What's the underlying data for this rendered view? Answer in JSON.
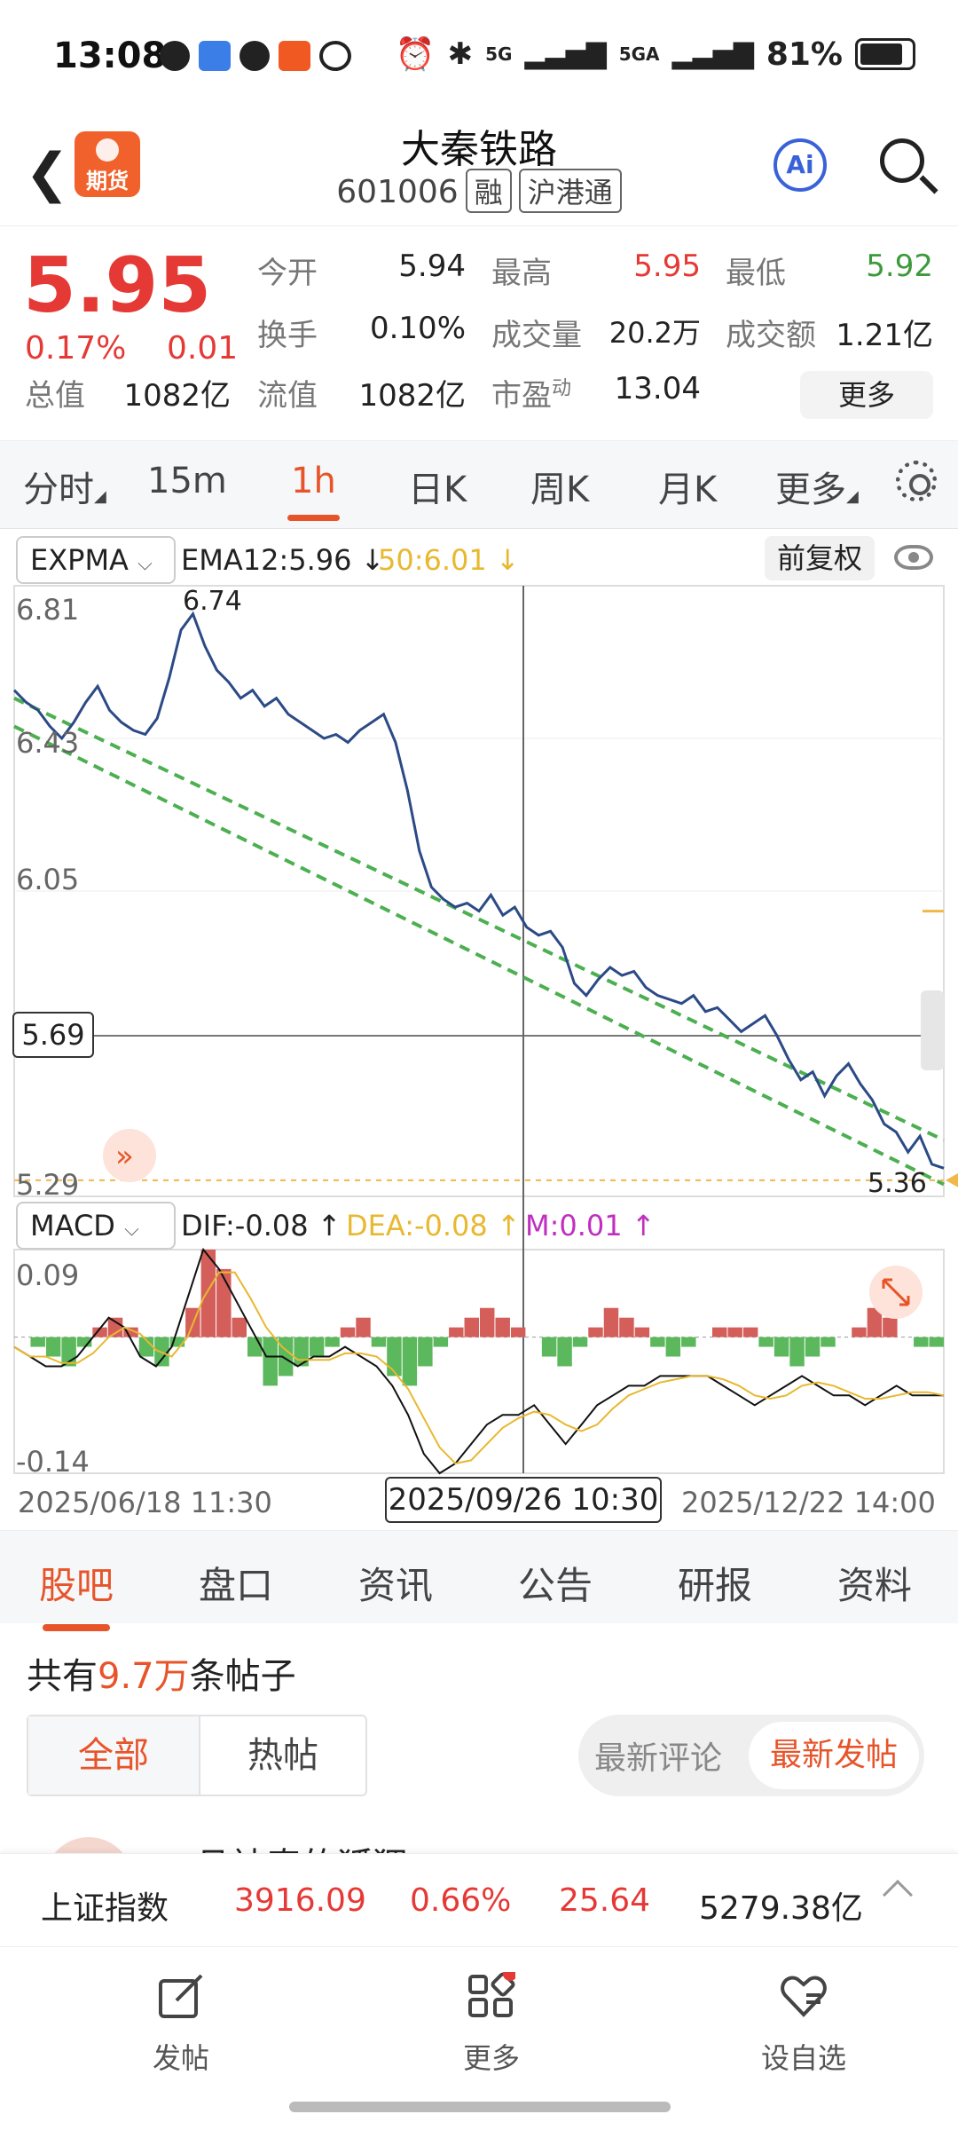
{
  "status_bar": {
    "time": "13:08",
    "signal1": "5G",
    "signal2": "5GA",
    "battery": "81%",
    "battery_level": 0.81
  },
  "header": {
    "title": "大秦铁路",
    "code": "601006",
    "tag1": "融",
    "tag2": "沪港通",
    "badge": "期货",
    "ai_label": "Ai"
  },
  "quote": {
    "price": "5.95",
    "change_pct": "0.17%",
    "change": "0.01",
    "open_label": "今开",
    "open": "5.94",
    "high_label": "最高",
    "high": "5.95",
    "low_label": "最低",
    "low": "5.92",
    "turnover_label": "换手",
    "turnover": "0.10%",
    "volume_label": "成交量",
    "volume": "20.2万",
    "amount_label": "成交额",
    "amount": "1.21亿",
    "total_cap_label": "总值",
    "total_cap": "1082亿",
    "float_cap_label": "流值",
    "float_cap": "1082亿",
    "pe_label": "市盈",
    "pe_sup": "动",
    "pe": "13.04",
    "more": "更多"
  },
  "chart_tabs": {
    "items": [
      "分时",
      "15m",
      "1h",
      "日K",
      "周K",
      "月K",
      "更多"
    ],
    "active": "1h"
  },
  "indicator": {
    "main_name": "EXPMA",
    "ema12": "EMA12:5.96 ↓",
    "ema50": "50:6.01 ↓",
    "adjust": "前复权",
    "sub_name": "MACD",
    "dif": "DIF:-0.08 ↑",
    "dea": "DEA:-0.08 ↑",
    "m": "M:0.01 ↑"
  },
  "chart_data": {
    "type": "line",
    "price_axis_labels": [
      "6.81",
      "6.43",
      "6.05",
      "5.29"
    ],
    "ylim": [
      5.29,
      6.81
    ],
    "high_label": "6.74",
    "low_label": "5.36",
    "cursor_value": "5.69",
    "macd_axis_labels": [
      "0.09",
      "-0.14"
    ],
    "macd_ylim": [
      -0.14,
      0.09
    ],
    "x_labels": [
      "2025/06/18 11:30",
      "2025/12/22 14:00"
    ],
    "cursor_date": "2025/09/26 10:30",
    "series": [
      {
        "values": [
          6.55,
          6.52,
          6.5,
          6.46,
          6.43,
          6.47,
          6.52,
          6.56,
          6.5,
          6.47,
          6.45,
          6.44,
          6.48,
          6.58,
          6.7,
          6.74,
          6.66,
          6.6,
          6.57,
          6.53,
          6.55,
          6.51,
          6.53,
          6.49,
          6.47,
          6.45,
          6.43,
          6.44,
          6.42,
          6.45,
          6.47,
          6.49,
          6.42,
          6.3,
          6.15,
          6.06,
          6.03,
          6.01,
          6.02,
          6.0,
          6.04,
          5.99,
          6.01,
          5.96,
          5.94,
          5.95,
          5.91,
          5.82,
          5.79,
          5.83,
          5.86,
          5.84,
          5.85,
          5.81,
          5.79,
          5.78,
          5.77,
          5.79,
          5.75,
          5.76,
          5.73,
          5.7,
          5.72,
          5.74,
          5.69,
          5.63,
          5.58,
          5.6,
          5.54,
          5.59,
          5.62,
          5.57,
          5.53,
          5.47,
          5.45,
          5.4,
          5.44,
          5.37,
          5.36
        ]
      }
    ],
    "macd_hist": [
      0.0,
      -0.01,
      -0.02,
      -0.03,
      -0.01,
      0.01,
      0.02,
      0.01,
      -0.02,
      -0.03,
      -0.01,
      0.03,
      0.09,
      0.07,
      0.02,
      -0.02,
      -0.05,
      -0.04,
      -0.03,
      -0.02,
      -0.01,
      0.01,
      0.02,
      -0.01,
      -0.04,
      -0.05,
      -0.03,
      -0.01,
      0.01,
      0.02,
      0.03,
      0.02,
      0.01,
      0.0,
      -0.02,
      -0.03,
      -0.01,
      0.01,
      0.03,
      0.02,
      0.01,
      -0.01,
      -0.02,
      -0.01,
      0.0,
      0.01,
      0.01,
      0.01,
      -0.01,
      -0.02,
      -0.03,
      -0.02,
      -0.01,
      0.0,
      0.01,
      0.03,
      0.02,
      0.0,
      -0.01,
      -0.01
    ],
    "macd_dif": [
      -0.01,
      -0.02,
      -0.03,
      -0.03,
      -0.02,
      0.0,
      0.02,
      0.01,
      -0.02,
      -0.03,
      -0.01,
      0.04,
      0.09,
      0.07,
      0.04,
      0.01,
      -0.02,
      -0.02,
      -0.03,
      -0.02,
      -0.02,
      -0.01,
      -0.02,
      -0.03,
      -0.05,
      -0.08,
      -0.12,
      -0.14,
      -0.13,
      -0.11,
      -0.09,
      -0.08,
      -0.08,
      -0.07,
      -0.09,
      -0.11,
      -0.09,
      -0.07,
      -0.06,
      -0.05,
      -0.05,
      -0.04,
      -0.04,
      -0.04,
      -0.04,
      -0.05,
      -0.06,
      -0.07,
      -0.06,
      -0.05,
      -0.04,
      -0.05,
      -0.06,
      -0.06,
      -0.07,
      -0.06,
      -0.05,
      -0.06,
      -0.06,
      -0.06
    ]
  },
  "bottom_tabs": {
    "items": [
      "股吧",
      "盘口",
      "资讯",
      "公告",
      "研报",
      "资料"
    ],
    "active": "股吧"
  },
  "posts": {
    "prefix": "共有",
    "count": "9.7万",
    "suffix": "条帖子",
    "filter_all": "全部",
    "filter_hot": "热帖",
    "sort_comment": "最新评论",
    "sort_post": "最新发帖",
    "peek_text": "且神奇的狐狸"
  },
  "index_ticker": {
    "name": "上证指数",
    "value": "3916.09",
    "pct": "0.66%",
    "change": "25.64",
    "amount": "5279.38亿"
  },
  "bottom_nav": {
    "post": "发帖",
    "more": "更多",
    "watch": "设自选"
  }
}
